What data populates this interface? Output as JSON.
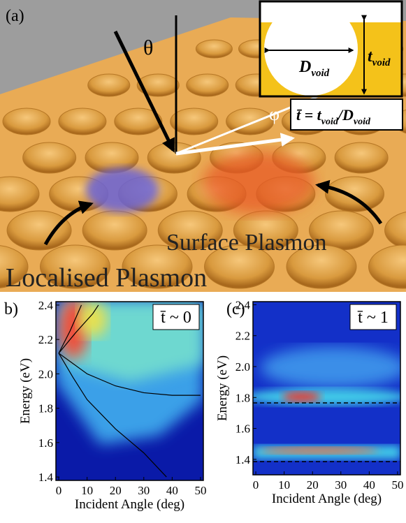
{
  "illustration": {
    "panel_label": "(a)",
    "theta": "θ",
    "phi": "φ",
    "d_symbol": "D",
    "d_subscript": "void",
    "t_symbol": "t",
    "t_subscript": "void",
    "ratio_parts": [
      "t̄ = t",
      "void",
      "/D",
      "void"
    ],
    "surface_label": "Surface Plasmon",
    "localised_label": "Localised Plasmon"
  },
  "chart_data": [
    {
      "type": "heatmap",
      "panel_label": "b)",
      "annotation": "t̄ ~ 0",
      "x_label": "Incident Angle (deg)",
      "y_label": "Energy (eV)",
      "xlim": [
        -1,
        51
      ],
      "ylim": [
        1.38,
        2.42
      ],
      "xticks": [
        0,
        10,
        20,
        30,
        40,
        50
      ],
      "yticks": [
        {
          "value": 1.4,
          "label": "1.4"
        },
        {
          "value": 1.6,
          "label": "1.6"
        },
        {
          "value": 1.8,
          "label": "1.8"
        },
        {
          "value": 2.0,
          "label": "2.0"
        },
        {
          "value": 2.2,
          "label": "2.2"
        },
        {
          "value": 2.4,
          "label": "2.4"
        }
      ],
      "series": [
        {
          "color": "#000000",
          "x": [
            0,
            4,
            8
          ],
          "values": [
            2.12,
            2.25,
            2.4
          ]
        },
        {
          "color": "#000000",
          "x": [
            0,
            6,
            12,
            14
          ],
          "values": [
            2.12,
            2.24,
            2.35,
            2.4
          ]
        },
        {
          "color": "#000000",
          "x": [
            0,
            10,
            20,
            30,
            40,
            50
          ],
          "values": [
            2.12,
            2.0,
            1.93,
            1.89,
            1.875,
            1.875
          ]
        },
        {
          "color": "#000000",
          "x": [
            0,
            5,
            10,
            20,
            30,
            38
          ],
          "values": [
            2.12,
            1.98,
            1.85,
            1.68,
            1.54,
            1.4
          ]
        }
      ]
    },
    {
      "type": "heatmap",
      "panel_label": "(c)",
      "annotation": "t̄ ~ 1",
      "x_label": "Incident Angle (deg)",
      "y_label": "Energy (eV)",
      "xlim": [
        -1,
        51
      ],
      "ylim": [
        1.3,
        2.42
      ],
      "xticks": [
        0,
        10,
        20,
        30,
        40,
        50
      ],
      "yticks": [
        {
          "value": 1.4,
          "label": "1.4"
        },
        {
          "value": 1.6,
          "label": "1.6"
        },
        {
          "value": 1.8,
          "label": "1.8"
        },
        {
          "value": 2.0,
          "label": "2.0"
        },
        {
          "value": 2.2,
          "label": "2.2"
        },
        {
          "value": 2.4,
          "label": "2.4"
        }
      ],
      "reference_lines": [
        1.765,
        1.385
      ]
    }
  ]
}
